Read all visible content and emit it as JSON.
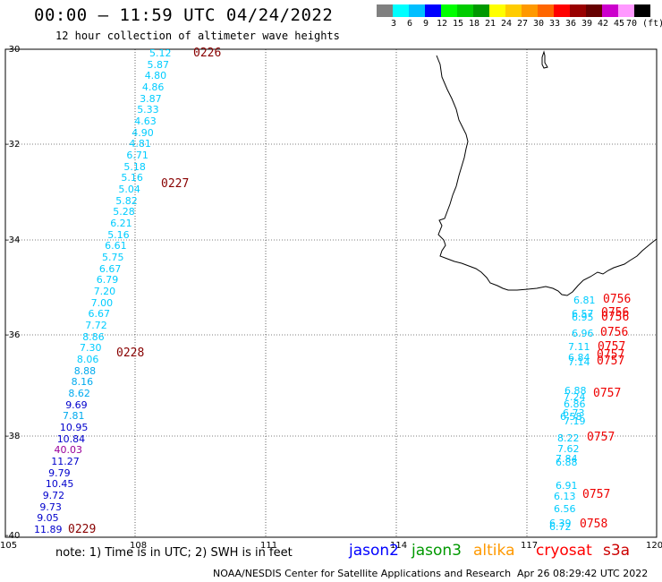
{
  "title": "00:00 – 11:59 UTC 04/24/2022",
  "subtitle": "12 hour collection of altimeter wave heights",
  "color_scale": {
    "labels": [
      "3",
      "6",
      "9",
      "12",
      "15",
      "18",
      "21",
      "24",
      "27",
      "30",
      "33",
      "36",
      "39",
      "42",
      "45",
      "70 (ft)"
    ],
    "colors": [
      "#808080",
      "#00ffff",
      "#00bfff",
      "#0000ff",
      "#00ff00",
      "#00cc00",
      "#009900",
      "#ffff00",
      "#ffcc00",
      "#ff9900",
      "#ff6600",
      "#ff0000",
      "#990000",
      "#660000",
      "#cc00cc",
      "#ff99ff",
      "#000000"
    ]
  },
  "axes": {
    "lon_ticks": [
      "105",
      "108",
      "111",
      "114",
      "117",
      "120"
    ],
    "lat_ticks": [
      "-30",
      "-32",
      "-34",
      "-36",
      "-38",
      "-40"
    ]
  },
  "note": "note:  1) Time is in UTC; 2) SWH is in feet",
  "satellites": [
    {
      "name": "jason2",
      "color": "#0000ff"
    },
    {
      "name": "jason3",
      "color": "#009900"
    },
    {
      "name": "altika",
      "color": "#ff9900"
    },
    {
      "name": "cryosat",
      "color": "#ff0000"
    },
    {
      "name": "s3a",
      "color": "#cc0000"
    }
  ],
  "credit": "NOAA/NESDIS Center for Satellite Applications and Research",
  "timestamp": "Apr 26 08:29:42 UTC 2022",
  "track_west": {
    "values": [
      {
        "v": "5.12",
        "c": "#00ccff"
      },
      {
        "v": "5.87",
        "c": "#00ccff"
      },
      {
        "v": "4.80",
        "c": "#00ccff"
      },
      {
        "v": "4.86",
        "c": "#00ccff"
      },
      {
        "v": "3.87",
        "c": "#00ccff"
      },
      {
        "v": "5.33",
        "c": "#00ccff"
      },
      {
        "v": "4.63",
        "c": "#00ccff"
      },
      {
        "v": "4.90",
        "c": "#00ccff"
      },
      {
        "v": "4.81",
        "c": "#00ccff"
      },
      {
        "v": "6.71",
        "c": "#00ccff"
      },
      {
        "v": "5.18",
        "c": "#00ccff"
      },
      {
        "v": "5.16",
        "c": "#00ccff"
      },
      {
        "v": "5.04",
        "c": "#00ccff"
      },
      {
        "v": "5.82",
        "c": "#00ccff"
      },
      {
        "v": "5.28",
        "c": "#00ccff"
      },
      {
        "v": "6.21",
        "c": "#00ccff"
      },
      {
        "v": "5.16",
        "c": "#00ccff"
      },
      {
        "v": "6.61",
        "c": "#00ccff"
      },
      {
        "v": "5.75",
        "c": "#00ccff"
      },
      {
        "v": "6.67",
        "c": "#00ccff"
      },
      {
        "v": "6.79",
        "c": "#00ccff"
      },
      {
        "v": "7.20",
        "c": "#00ccff"
      },
      {
        "v": "7.00",
        "c": "#00ccff"
      },
      {
        "v": "6.67",
        "c": "#00ccff"
      },
      {
        "v": "7.72",
        "c": "#00ccff"
      },
      {
        "v": "8.86",
        "c": "#00ccff"
      },
      {
        "v": "7.30",
        "c": "#00ccff"
      },
      {
        "v": "8.06",
        "c": "#00ccff"
      },
      {
        "v": "8.88",
        "c": "#00aaee"
      },
      {
        "v": "8.16",
        "c": "#00aaee"
      },
      {
        "v": "8.62",
        "c": "#00aaee"
      },
      {
        "v": "9.69",
        "c": "#0000cc"
      },
      {
        "v": "7.81",
        "c": "#00aaee"
      },
      {
        "v": "10.95",
        "c": "#0000cc"
      },
      {
        "v": "10.84",
        "c": "#0000cc"
      },
      {
        "v": "40.03",
        "c": "#990099"
      },
      {
        "v": "11.27",
        "c": "#0000cc"
      },
      {
        "v": "9.79",
        "c": "#0000cc"
      },
      {
        "v": "10.45",
        "c": "#0000cc"
      },
      {
        "v": "9.72",
        "c": "#0000cc"
      },
      {
        "v": "9.73",
        "c": "#0000cc"
      },
      {
        "v": "9.05",
        "c": "#0000cc"
      },
      {
        "v": "11.89",
        "c": "#0000cc"
      }
    ],
    "times": [
      {
        "t": "0226",
        "c": "#880000"
      },
      {
        "t": "0227",
        "c": "#880000"
      },
      {
        "t": "0228",
        "c": "#880000"
      },
      {
        "t": "0229",
        "c": "#880000"
      }
    ]
  },
  "track_east": {
    "values": [
      {
        "v": "6.81",
        "c": "#00ccff"
      },
      {
        "v": "6.57",
        "c": "#00ccff"
      },
      {
        "v": "6.95",
        "c": "#00ccff"
      },
      {
        "v": "6.96",
        "c": "#00ccff"
      },
      {
        "v": "7.11",
        "c": "#00ccff"
      },
      {
        "v": "6.84",
        "c": "#00ccff"
      },
      {
        "v": "7.14",
        "c": "#00ccff"
      },
      {
        "v": "6.88",
        "c": "#00ccff"
      },
      {
        "v": "7.24",
        "c": "#00ccff"
      },
      {
        "v": "6.86",
        "c": "#00ccff"
      },
      {
        "v": "6.73",
        "c": "#00ccff"
      },
      {
        "v": "6.58",
        "c": "#00ccff"
      },
      {
        "v": "7.19",
        "c": "#00ccff"
      },
      {
        "v": "8.22",
        "c": "#00ccff"
      },
      {
        "v": "7.62",
        "c": "#00ccff"
      },
      {
        "v": "7.84",
        "c": "#00ccff"
      },
      {
        "v": "6.88",
        "c": "#00ccff"
      },
      {
        "v": "6.91",
        "c": "#00ccff"
      },
      {
        "v": "6.13",
        "c": "#00ccff"
      },
      {
        "v": "6.56",
        "c": "#00ccff"
      },
      {
        "v": "6.39",
        "c": "#00ccff"
      },
      {
        "v": "6.72",
        "c": "#00ccff"
      }
    ],
    "times": [
      {
        "t": "0756",
        "c": "#ee0000"
      },
      {
        "t": "0756",
        "c": "#ee0000"
      },
      {
        "t": "0756",
        "c": "#ee0000"
      },
      {
        "t": "0756",
        "c": "#ee0000"
      },
      {
        "t": "0757",
        "c": "#ee0000"
      },
      {
        "t": "0757",
        "c": "#ee0000"
      },
      {
        "t": "0757",
        "c": "#ee0000"
      },
      {
        "t": "0757",
        "c": "#ee0000"
      },
      {
        "t": "0757",
        "c": "#ee0000"
      },
      {
        "t": "0757",
        "c": "#ee0000"
      },
      {
        "t": "0758",
        "c": "#ee0000"
      }
    ]
  }
}
